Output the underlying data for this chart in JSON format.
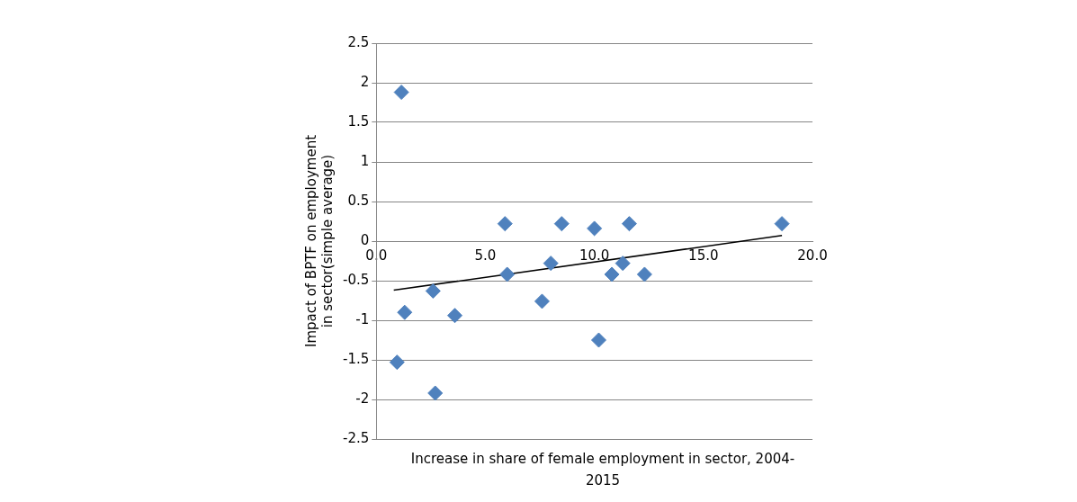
{
  "chart_data": {
    "type": "scatter",
    "ylabel": "Impact of BPTF on employment in sector(simple average)",
    "xlabel": "Increase in share of female employment in sector, 2004-2015",
    "xlim": [
      0,
      20
    ],
    "xticks": [
      {
        "value": 0,
        "label": "0.0"
      },
      {
        "value": 5,
        "label": "5.0"
      },
      {
        "value": 10,
        "label": "10.0"
      },
      {
        "value": 15,
        "label": "15.0"
      },
      {
        "value": 20,
        "label": "20.0"
      }
    ],
    "ylim": [
      -2.5,
      2.5
    ],
    "yticks": [
      -2.5,
      -2,
      -1.5,
      -1,
      -0.5,
      0,
      0.5,
      1,
      1.5,
      2,
      2.5
    ],
    "grid": "y",
    "legend": false,
    "series": [
      {
        "type": "scatter",
        "color": "#4f81bd",
        "marker": "diamond",
        "x": [
          1.15,
          5.9,
          8.5,
          10.0,
          11.6,
          18.6,
          6.0,
          8.0,
          11.3,
          10.8,
          12.3,
          2.6,
          7.6,
          1.3,
          3.6,
          10.2,
          0.95,
          2.7
        ],
        "values": [
          1.88,
          0.22,
          0.22,
          0.16,
          0.22,
          0.22,
          -0.42,
          -0.28,
          -0.28,
          -0.42,
          -0.42,
          -0.63,
          -0.76,
          -0.9,
          -0.94,
          -1.25,
          -1.53,
          -1.92
        ]
      },
      {
        "type": "line",
        "color": "#000000",
        "marker": "none",
        "x": [
          0.8,
          18.6
        ],
        "values": [
          -0.62,
          0.07
        ]
      }
    ]
  }
}
